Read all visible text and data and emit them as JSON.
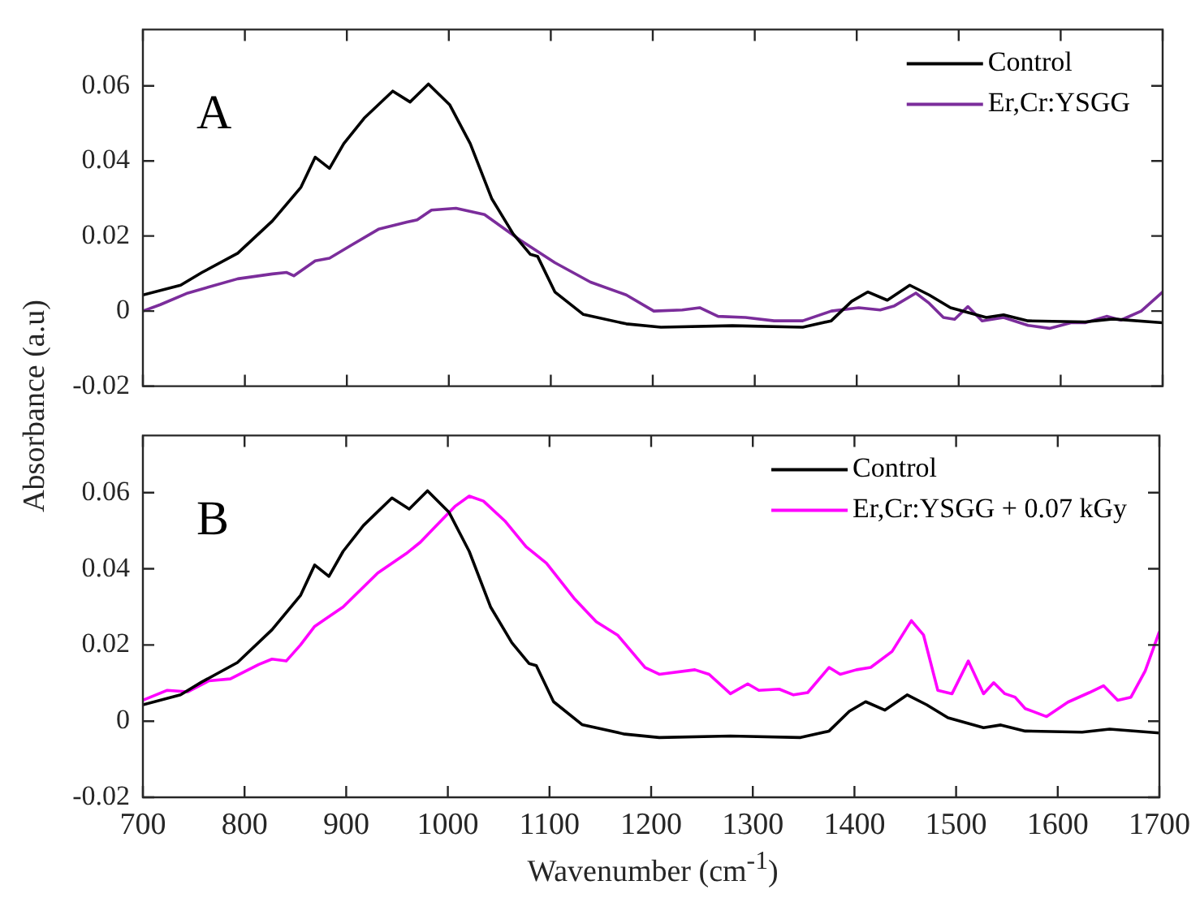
{
  "chart_data": [
    {
      "type": "line",
      "ylabel": "Absorbance (a.u)",
      "annotations": [
        "A"
      ],
      "xlim": [
        700,
        1700
      ],
      "xticks": [
        700,
        800,
        900,
        1000,
        1100,
        1200,
        1300,
        1400,
        1500,
        1600,
        1700
      ],
      "ylim": [
        -0.02,
        0.075
      ],
      "yticks": [
        -0.02,
        0,
        0.02,
        0.04,
        0.06
      ],
      "tick_labels": "y",
      "grid": false,
      "legend": "top right",
      "series": [
        {
          "name": "Control",
          "color": "#000000",
          "x": [
            700,
            737,
            758,
            793,
            827,
            855,
            869,
            883,
            897,
            917,
            945,
            962,
            980,
            1001,
            1021,
            1042,
            1063,
            1080,
            1087,
            1104,
            1132,
            1174,
            1208,
            1278,
            1347,
            1375,
            1395,
            1411,
            1430,
            1452,
            1471,
            1492,
            1527,
            1544,
            1568,
            1624,
            1651,
            1700
          ],
          "values": [
            0.0043,
            0.0069,
            0.0103,
            0.0154,
            0.024,
            0.033,
            0.041,
            0.038,
            0.0446,
            0.0514,
            0.0586,
            0.0557,
            0.0605,
            0.0549,
            0.0446,
            0.03,
            0.0206,
            0.0151,
            0.0146,
            0.0051,
            -0.0009,
            -0.0034,
            -0.0043,
            -0.0039,
            -0.0043,
            -0.0026,
            0.0026,
            0.0051,
            0.0029,
            0.0069,
            0.0043,
            0.0009,
            -0.0017,
            -0.001,
            -0.0026,
            -0.0029,
            -0.0021,
            -0.0031
          ]
        },
        {
          "name": "Er,Cr:YSGG",
          "color": "#7b2d9b",
          "x": [
            700,
            717,
            744,
            793,
            827,
            841,
            848,
            869,
            883,
            904,
            931,
            959,
            969,
            983,
            1007,
            1035,
            1070,
            1104,
            1139,
            1174,
            1201,
            1229,
            1246,
            1264,
            1291,
            1319,
            1347,
            1375,
            1402,
            1423,
            1437,
            1458,
            1471,
            1485,
            1496,
            1509,
            1523,
            1544,
            1568,
            1589,
            1610,
            1624,
            1645,
            1659,
            1679,
            1700
          ],
          "values": [
            0.0,
            0.0017,
            0.0048,
            0.0086,
            0.0099,
            0.0103,
            0.0094,
            0.0134,
            0.0141,
            0.0175,
            0.0218,
            0.0237,
            0.0243,
            0.0269,
            0.0274,
            0.0257,
            0.0189,
            0.0129,
            0.0077,
            0.0043,
            0.0,
            0.0003,
            0.0009,
            -0.0014,
            -0.0017,
            -0.0026,
            -0.0026,
            0.0,
            0.0009,
            0.0003,
            0.0014,
            0.0048,
            0.0021,
            -0.0017,
            -0.0022,
            0.0012,
            -0.0026,
            -0.0017,
            -0.0038,
            -0.0046,
            -0.0031,
            -0.0031,
            -0.0014,
            -0.0024,
            0.0,
            0.0051
          ]
        }
      ]
    },
    {
      "type": "line",
      "xlabel": "Wavenumber (cm$^{-1}$)",
      "annotations": [
        "B"
      ],
      "xlim": [
        700,
        1700
      ],
      "xticks": [
        700,
        800,
        900,
        1000,
        1100,
        1200,
        1300,
        1400,
        1500,
        1600,
        1700
      ],
      "ylim": [
        -0.02,
        0.075
      ],
      "yticks": [
        -0.02,
        0,
        0.02,
        0.04,
        0.06
      ],
      "grid": false,
      "legend": "top right",
      "series": [
        {
          "name": "Control",
          "color": "#000000",
          "x": [
            700,
            737,
            758,
            793,
            827,
            855,
            869,
            883,
            897,
            917,
            945,
            962,
            980,
            1001,
            1021,
            1042,
            1063,
            1080,
            1087,
            1104,
            1132,
            1174,
            1208,
            1278,
            1347,
            1375,
            1395,
            1411,
            1430,
            1452,
            1471,
            1492,
            1527,
            1544,
            1568,
            1624,
            1651,
            1700
          ],
          "values": [
            0.0043,
            0.0069,
            0.0103,
            0.0154,
            0.024,
            0.033,
            0.041,
            0.038,
            0.0446,
            0.0514,
            0.0586,
            0.0557,
            0.0605,
            0.0549,
            0.0446,
            0.03,
            0.0206,
            0.0151,
            0.0146,
            0.0051,
            -0.0009,
            -0.0034,
            -0.0043,
            -0.0039,
            -0.0043,
            -0.0026,
            0.0026,
            0.0051,
            0.0029,
            0.0069,
            0.0043,
            0.0009,
            -0.0017,
            -0.001,
            -0.0026,
            -0.0029,
            -0.0021,
            -0.0031
          ]
        },
        {
          "name": "Er,Cr:YSGG + 0.07 kGy",
          "color": "#ff00ff",
          "x": [
            700,
            724,
            744,
            765,
            786,
            814,
            827,
            841,
            855,
            869,
            897,
            931,
            959,
            973,
            987,
            1007,
            1021,
            1035,
            1056,
            1077,
            1097,
            1125,
            1146,
            1167,
            1194,
            1208,
            1243,
            1257,
            1278,
            1295,
            1306,
            1326,
            1340,
            1354,
            1375,
            1386,
            1402,
            1416,
            1437,
            1456,
            1468,
            1482,
            1496,
            1512,
            1527,
            1537,
            1548,
            1558,
            1568,
            1589,
            1610,
            1631,
            1645,
            1659,
            1672,
            1686,
            1700
          ],
          "values": [
            0.0055,
            0.0081,
            0.0077,
            0.0106,
            0.0111,
            0.0149,
            0.0163,
            0.0158,
            0.02,
            0.0249,
            0.03,
            0.0389,
            0.044,
            0.047,
            0.0509,
            0.0564,
            0.0591,
            0.0578,
            0.0526,
            0.0458,
            0.0415,
            0.032,
            0.0261,
            0.0226,
            0.0141,
            0.0123,
            0.0135,
            0.0123,
            0.0072,
            0.0098,
            0.0081,
            0.0084,
            0.0069,
            0.0075,
            0.0141,
            0.0123,
            0.0135,
            0.0141,
            0.0183,
            0.0264,
            0.0226,
            0.0081,
            0.0072,
            0.0158,
            0.0072,
            0.0101,
            0.0072,
            0.0063,
            0.0033,
            0.0012,
            0.005,
            0.0075,
            0.0093,
            0.0055,
            0.0063,
            0.0132,
            0.0235
          ]
        }
      ]
    }
  ]
}
